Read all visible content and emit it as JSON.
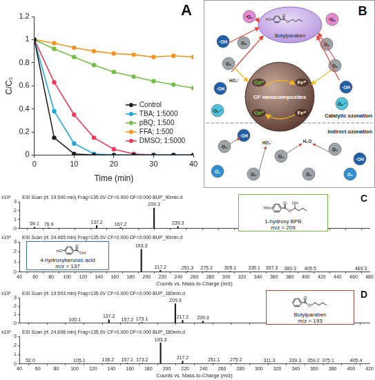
{
  "chart_data": [
    {
      "panel_label": "A",
      "type": "line",
      "xlabel": "Time (min)",
      "ylabel": "C/C₀",
      "x": [
        0,
        5,
        10,
        15,
        20,
        25,
        30,
        35,
        40
      ],
      "xlim": [
        0,
        40
      ],
      "xticks": [
        0,
        10,
        20,
        30,
        40
      ],
      "ylim": [
        0,
        1.2
      ],
      "yticks": [
        0,
        0.2,
        0.4,
        0.6,
        0.8,
        1,
        1.2
      ],
      "grid": false,
      "legend": "lower right",
      "marker": "circle",
      "series": [
        {
          "name": "Control",
          "color": "#231f20",
          "values": [
            1,
            0.15,
            0.01,
            0,
            0,
            0,
            0,
            0,
            0
          ]
        },
        {
          "name": "TBA; 1:5000",
          "color": "#1ba8e0",
          "values": [
            1,
            0.38,
            0.1,
            0.01,
            0,
            0,
            0,
            0,
            0
          ]
        },
        {
          "name": "pBQ; 1:500",
          "color": "#72bf44",
          "values": [
            1,
            0.92,
            0.85,
            0.78,
            0.72,
            0.68,
            0.64,
            0.61,
            0.58
          ]
        },
        {
          "name": "FFA; 1:500",
          "color": "#f7941d",
          "values": [
            1,
            0.97,
            0.93,
            0.9,
            0.88,
            0.87,
            0.85,
            0.86,
            0.85
          ]
        },
        {
          "name": "DMSO; 1:5000",
          "color": "#ed3a5a",
          "values": [
            1,
            0.63,
            0.35,
            0.15,
            0.05,
            0.01,
            0,
            0,
            0
          ]
        }
      ]
    },
    {
      "panel_label": "C",
      "type": "bar",
      "title": "ESI Scan (rt: 19.590 min) Frag=135.0V CF=0.000 DF=0.000 BUP_90min.d",
      "ylabel": "x10⁵",
      "color": "#1a1a1a",
      "grid": false,
      "tick_labels": "y",
      "x": [
        59.1,
        76.9,
        137.2,
        167.2,
        209.3,
        239.3
      ],
      "x_labels": [
        "59.1",
        "76.9",
        "137.2",
        "167.2",
        "209.3",
        "239.3"
      ],
      "values": [
        0.15,
        0.1,
        0.35,
        0.12,
        2.3,
        0.22
      ],
      "xlim": [
        40,
        480
      ],
      "xticks": [
        40,
        60,
        80,
        100,
        120,
        140,
        160,
        180,
        200,
        220,
        240,
        260,
        280,
        300,
        320,
        340,
        360,
        380,
        400,
        420,
        440,
        460,
        480
      ],
      "ylim": [
        0,
        3
      ],
      "yticks": [
        0,
        1,
        2,
        3
      ]
    },
    {
      "type": "bar",
      "title": "ESI Scan (rt: 24.465 min) Frag=135.0V CF=0.000 DF=0.000 BUP_90min.d",
      "ylabel": "x10⁵",
      "xlabel": "Counts vs. Mass-to-Charge (m/z)",
      "color": "#1a1a1a",
      "grid": false,
      "x": [
        193.3,
        217.2,
        251.3,
        275.2,
        305.1,
        335.1,
        357.3,
        380.3,
        405.5,
        469.3
      ],
      "x_labels": [
        "193.3",
        "217.2",
        "251.3",
        "275.2",
        "305.1",
        "335.1",
        "357.3",
        "380.3",
        "405.5",
        "469.3"
      ],
      "values": [
        2.25,
        0.15,
        0.06,
        0.05,
        0.05,
        0.04,
        0.04,
        0.03,
        0.03,
        0.02
      ],
      "xlim": [
        40,
        480
      ],
      "xticks": [
        40,
        60,
        80,
        100,
        120,
        140,
        160,
        180,
        200,
        220,
        240,
        260,
        280,
        300,
        320,
        340,
        360,
        380,
        400,
        420,
        440,
        460,
        480
      ],
      "ylim": [
        0,
        3
      ],
      "yticks": [
        0,
        1,
        2,
        3
      ]
    },
    {
      "panel_label": "D",
      "type": "bar",
      "title": "ESI Scan (rt: 19.593 min) Frag=135.0V CF=0.000 DF=0.000 BUP_180min.d",
      "ylabel": "x10⁵",
      "color": "#1a1a1a",
      "grid": false,
      "tick_labels": "y",
      "x": [
        100.1,
        137.2,
        157.2,
        173.1,
        209.3,
        217.2,
        239.3
      ],
      "x_labels": [
        "100.1",
        "137.2",
        "157.2",
        "173.1",
        "209.3",
        "217.2",
        "239.3"
      ],
      "values": [
        0.05,
        0.4,
        0.06,
        0.1,
        2.3,
        0.35,
        0.25
      ],
      "xlim": [
        40,
        420
      ],
      "xticks": [
        40,
        60,
        80,
        100,
        120,
        140,
        160,
        180,
        200,
        220,
        240,
        260,
        280,
        300,
        320,
        340,
        360,
        380,
        400,
        420
      ],
      "ylim": [
        0,
        3
      ],
      "yticks": [
        0,
        1,
        2,
        3
      ]
    },
    {
      "type": "bar",
      "title": "ESI Scan (rt: 24.698 min) Frag=135.0V CF=0.000 DF=0.000 BUP_180min.d",
      "ylabel": "x10⁵",
      "xlabel": "Counts vs. Mass-to-Charge (m/z)",
      "color": "#1a1a1a",
      "grid": false,
      "x": [
        52.0,
        105.1,
        136.2,
        157.1,
        173.2,
        193.3,
        217.2,
        251.1,
        275.2,
        311.3,
        339.3,
        359.2,
        375.1,
        405.4
      ],
      "x_labels": [
        "52.0",
        "105.1",
        "136.2",
        "157.1",
        "173.2",
        "193.3",
        "217.2",
        "251.1",
        "275.2",
        "311.3",
        "339.3",
        "359.2",
        "375.1",
        "405.4"
      ],
      "values": [
        0.03,
        0.04,
        0.06,
        0.05,
        0.06,
        2.3,
        0.3,
        0.06,
        0.05,
        0.04,
        0.04,
        0.03,
        0.03,
        0.03
      ],
      "xlim": [
        40,
        420
      ],
      "xticks": [
        40,
        60,
        80,
        100,
        120,
        140,
        160,
        180,
        200,
        220,
        240,
        260,
        280,
        300,
        320,
        340,
        360,
        380,
        400,
        420
      ],
      "ylim": [
        0,
        3
      ],
      "yticks": [
        0,
        1,
        2,
        3
      ]
    }
  ],
  "structures": [
    {
      "name": "4-hydroxybenzoic acid",
      "label": "m/z = 137",
      "color": "#3f6fb5",
      "atoms": [
        "HO",
        "O",
        "OH"
      ]
    },
    {
      "name": "1-hydroxy BPB",
      "label": "m/z = 209",
      "color": "#78b943",
      "atoms": [
        "HO",
        "O",
        "O",
        "OH"
      ]
    },
    {
      "name": "Butylparaben",
      "label": "m/z = 193",
      "color": "#b0483c",
      "atoms": [
        "O",
        "O"
      ]
    }
  ],
  "diagram": {
    "panel_label": "B",
    "target": {
      "name": "Butylparaben",
      "atoms": [
        "HO",
        "O",
        "O"
      ]
    },
    "catalyst": "CF nanocomposites",
    "ions": [
      "Co²⁺",
      "Co³⁺",
      "Fe³⁺",
      "Fe²⁺"
    ],
    "regions": [
      "Catalytic ozonation",
      "Indirect ozonation"
    ],
    "species": [
      {
        "label": "O₃",
        "color": "#9ea3a8"
      },
      {
        "label": "·OH",
        "color": "#1f5ea8"
      },
      {
        "label": "¹O₂",
        "color": "#e58ad2"
      },
      {
        "label": "O₂·⁻",
        "color": "#4fc3d9"
      },
      {
        "label": "HO₂⁻"
      },
      {
        "label": "H₂O"
      },
      {
        "label": "O₂",
        "color": "#2f8fd0"
      }
    ]
  }
}
